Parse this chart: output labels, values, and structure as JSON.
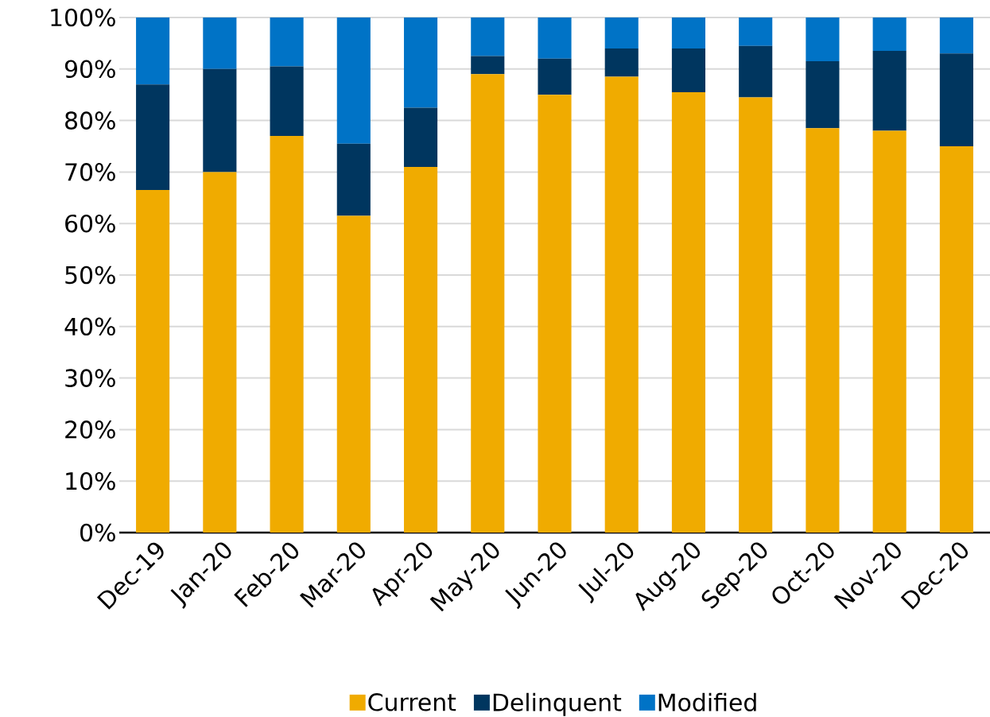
{
  "chart_data": {
    "type": "bar",
    "stacked": true,
    "categories": [
      "Dec-19",
      "Jan-20",
      "Feb-20",
      "Mar-20",
      "Apr-20",
      "May-20",
      "Jun-20",
      "Jul-20",
      "Aug-20",
      "Sep-20",
      "Oct-20",
      "Nov-20",
      "Dec-20"
    ],
    "series": [
      {
        "name": "Current",
        "color": "#f0ab00",
        "values": [
          66.5,
          70,
          77,
          61.5,
          71,
          89,
          85,
          88.5,
          85.5,
          84.5,
          78.5,
          78,
          75
        ]
      },
      {
        "name": "Delinquent",
        "color": "#00365f",
        "values": [
          20.5,
          20,
          13.5,
          14,
          11.5,
          3.5,
          7,
          5.5,
          8.5,
          10,
          13,
          15.5,
          18
        ]
      },
      {
        "name": "Modified",
        "color": "#0073c6",
        "values": [
          13,
          10,
          9.5,
          24.5,
          17.5,
          7.5,
          8,
          6,
          6,
          5.5,
          8.5,
          6.5,
          7
        ]
      }
    ],
    "ylim": [
      0,
      100
    ],
    "yticks": [
      {
        "value": 0,
        "label": "0%"
      },
      {
        "value": 10,
        "label": "10%"
      },
      {
        "value": 20,
        "label": "20%"
      },
      {
        "value": 30,
        "label": "30%"
      },
      {
        "value": 40,
        "label": "40%"
      },
      {
        "value": 50,
        "label": "50%"
      },
      {
        "value": 60,
        "label": "60%"
      },
      {
        "value": 70,
        "label": "70%"
      },
      {
        "value": 80,
        "label": "80%"
      },
      {
        "value": 90,
        "label": "90%"
      },
      {
        "value": 100,
        "label": "100%"
      }
    ],
    "grid": "y",
    "legend": "bottom"
  }
}
